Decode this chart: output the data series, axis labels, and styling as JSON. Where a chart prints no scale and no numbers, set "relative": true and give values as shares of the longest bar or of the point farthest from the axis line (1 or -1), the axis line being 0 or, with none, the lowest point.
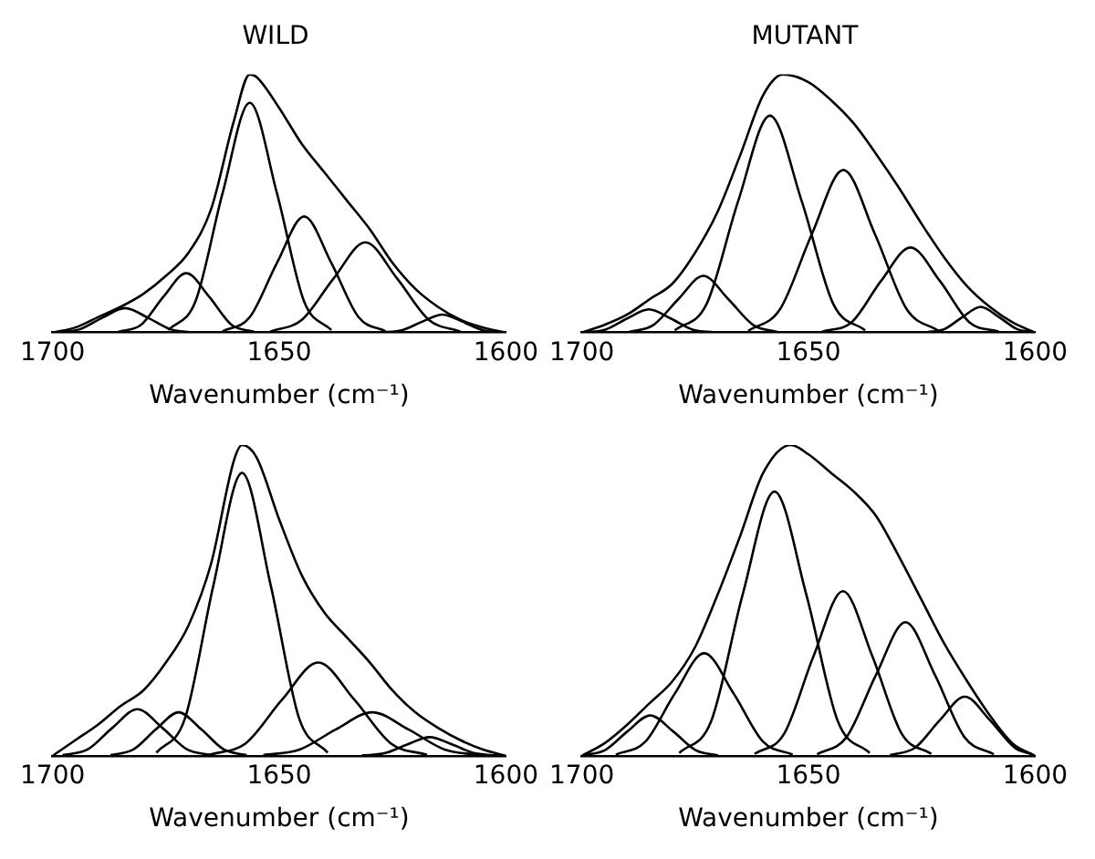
{
  "chart_data": [
    {
      "type": "line",
      "title": "WILD",
      "xlabel": "Wavenumber (cm⁻¹)",
      "relative": true,
      "xlim": [
        1700,
        1600
      ],
      "xticks": [
        1700,
        1650,
        1600
      ],
      "marker": "none",
      "line_style": "solid",
      "legend": false,
      "series": [
        {
          "color": "#000000",
          "x": [
            1700,
            1695,
            1690,
            1685,
            1680,
            1675,
            1670,
            1665,
            1660,
            1656.5,
            1655,
            1650,
            1645,
            1640,
            1635,
            1630,
            1625,
            1620,
            1615,
            1610,
            1605,
            1600
          ],
          "values": [
            0,
            0.02,
            0.06,
            0.1,
            0.15,
            0.22,
            0.31,
            0.48,
            0.82,
            1,
            0.99,
            0.87,
            0.73,
            0.62,
            0.51,
            0.4,
            0.27,
            0.17,
            0.1,
            0.05,
            0.02,
            0
          ]
        },
        {
          "color": "#000000",
          "x": [
            1674.5,
            1668.5,
            1662.5,
            1656.5,
            1650.5,
            1644.5,
            1638.5
          ],
          "values": [
            0.01,
            0.12,
            0.54,
            0.89,
            0.54,
            0.12,
            0.01
          ]
        },
        {
          "color": "#000000",
          "x": [
            1662.5,
            1656.5,
            1650.5,
            1644.5,
            1638.5,
            1632.5,
            1626.5
          ],
          "values": [
            0.005,
            0.06,
            0.27,
            0.45,
            0.27,
            0.06,
            0.005
          ]
        },
        {
          "color": "#000000",
          "x": [
            1652,
            1645,
            1638,
            1631,
            1624,
            1617,
            1610
          ],
          "values": [
            0.004,
            0.05,
            0.21,
            0.35,
            0.21,
            0.05,
            0.004
          ]
        },
        {
          "color": "#000000",
          "x": [
            1685.5,
            1680.5,
            1675.5,
            1670.5,
            1665.5,
            1660.5,
            1655.5
          ],
          "values": [
            0.003,
            0.03,
            0.14,
            0.23,
            0.14,
            0.03,
            0.003
          ]
        },
        {
          "color": "#000000",
          "x": [
            1699,
            1694,
            1689,
            1684,
            1679,
            1674,
            1669
          ],
          "values": [
            0.001,
            0.013,
            0.058,
            0.095,
            0.058,
            0.013,
            0.001
          ]
        },
        {
          "color": "#000000",
          "x": [
            1627.5,
            1623,
            1618.5,
            1614,
            1609.5,
            1605,
            1601
          ],
          "values": [
            0.001,
            0.009,
            0.042,
            0.07,
            0.042,
            0.009,
            0.001
          ]
        }
      ]
    },
    {
      "type": "line",
      "title": "MUTANT",
      "xlabel": "Wavenumber (cm⁻¹)",
      "relative": true,
      "xlim": [
        1700,
        1600
      ],
      "xticks": [
        1700,
        1650,
        1600
      ],
      "marker": "none",
      "line_style": "solid",
      "legend": false,
      "series": [
        {
          "color": "#000000",
          "x": [
            1700,
            1695,
            1690,
            1685,
            1680,
            1675,
            1670,
            1665,
            1660,
            1655.6,
            1650,
            1645,
            1640,
            1635,
            1630,
            1625,
            1620,
            1615,
            1610,
            1605,
            1600
          ],
          "values": [
            0,
            0.03,
            0.07,
            0.13,
            0.19,
            0.31,
            0.47,
            0.69,
            0.92,
            1,
            0.97,
            0.9,
            0.81,
            0.69,
            0.56,
            0.42,
            0.29,
            0.18,
            0.1,
            0.04,
            0
          ]
        },
        {
          "color": "#000000",
          "x": [
            1679.5,
            1672.5,
            1665.5,
            1658.5,
            1651.5,
            1644.5,
            1637.5
          ],
          "values": [
            0.009,
            0.11,
            0.51,
            0.84,
            0.51,
            0.11,
            0.009
          ]
        },
        {
          "color": "#000000",
          "x": [
            1663.3,
            1656.3,
            1649.3,
            1642.3,
            1635.3,
            1628.3,
            1621.3
          ],
          "values": [
            0.007,
            0.09,
            0.38,
            0.63,
            0.38,
            0.09,
            0.007
          ]
        },
        {
          "color": "#000000",
          "x": [
            1647,
            1640.5,
            1634,
            1627.5,
            1621,
            1614.5,
            1608
          ],
          "values": [
            0.004,
            0.04,
            0.2,
            0.33,
            0.2,
            0.04,
            0.004
          ]
        },
        {
          "color": "#000000",
          "x": [
            1689.7,
            1684.2,
            1678.7,
            1673.2,
            1667.7,
            1662.2,
            1656.7
          ],
          "values": [
            0.002,
            0.03,
            0.13,
            0.22,
            0.13,
            0.03,
            0.002
          ]
        },
        {
          "color": "#000000",
          "x": [
            1699.6,
            1694.8,
            1690,
            1685.2,
            1680.4,
            1675.6,
            1670.8
          ],
          "values": [
            0.001,
            0.012,
            0.055,
            0.09,
            0.055,
            0.012,
            0.001
          ]
        },
        {
          "color": "#000000",
          "x": [
            1624,
            1620,
            1616,
            1612,
            1608,
            1604,
            1600.5
          ],
          "values": [
            0.001,
            0.014,
            0.061,
            0.1,
            0.061,
            0.014,
            0.002
          ]
        }
      ]
    },
    {
      "type": "line",
      "xlabel": "Wavenumber (cm⁻¹)",
      "relative": true,
      "xlim": [
        1700,
        1600
      ],
      "xticks": [
        1700,
        1650,
        1600
      ],
      "marker": "none",
      "line_style": "solid",
      "legend": false,
      "series": [
        {
          "color": "#000000",
          "x": [
            1700,
            1695,
            1690,
            1685,
            1680,
            1675,
            1670,
            1665,
            1660,
            1658.2,
            1655,
            1650,
            1645,
            1640,
            1635,
            1630,
            1625,
            1620,
            1615,
            1610,
            1605,
            1600
          ],
          "values": [
            0,
            0.05,
            0.1,
            0.16,
            0.21,
            0.3,
            0.42,
            0.62,
            0.95,
            1,
            0.96,
            0.76,
            0.58,
            0.46,
            0.38,
            0.3,
            0.21,
            0.14,
            0.09,
            0.05,
            0.02,
            0
          ]
        },
        {
          "color": "#000000",
          "x": [
            1677.1,
            1670.8,
            1664.5,
            1658.2,
            1651.9,
            1645.6,
            1639.3
          ],
          "values": [
            0.01,
            0.12,
            0.55,
            0.91,
            0.55,
            0.12,
            0.01
          ]
        },
        {
          "color": "#000000",
          "x": [
            1665.4,
            1657.4,
            1649.4,
            1641.4,
            1633.4,
            1625.4,
            1617.4
          ],
          "values": [
            0.003,
            0.04,
            0.18,
            0.3,
            0.18,
            0.04,
            0.003
          ]
        },
        {
          "color": "#000000",
          "x": [
            1653.5,
            1645.5,
            1637.5,
            1629.5,
            1621.5,
            1613.5,
            1605.5
          ],
          "values": [
            0.002,
            0.02,
            0.085,
            0.14,
            0.085,
            0.02,
            0.002
          ]
        },
        {
          "color": "#000000",
          "x": [
            1697.8,
            1692.3,
            1686.8,
            1681.3,
            1675.8,
            1670.3,
            1664.8
          ],
          "values": [
            0.002,
            0.02,
            0.09,
            0.15,
            0.09,
            0.02,
            0.002
          ]
        },
        {
          "color": "#000000",
          "x": [
            1687.2,
            1682.2,
            1677.2,
            1672.2,
            1667.2,
            1662.2,
            1657.2
          ],
          "values": [
            0.002,
            0.02,
            0.085,
            0.14,
            0.085,
            0.02,
            0.002
          ]
        },
        {
          "color": "#000000",
          "x": [
            1631.8,
            1626.8,
            1621.8,
            1616.8,
            1611.8,
            1606.8,
            1601.8
          ],
          "values": [
            0.001,
            0.008,
            0.036,
            0.06,
            0.036,
            0.008,
            0.001
          ]
        }
      ]
    },
    {
      "type": "line",
      "xlabel": "Wavenumber (cm⁻¹)",
      "relative": true,
      "xlim": [
        1700,
        1600
      ],
      "xticks": [
        1700,
        1650,
        1600
      ],
      "marker": "none",
      "line_style": "solid",
      "legend": false,
      "series": [
        {
          "color": "#000000",
          "x": [
            1700,
            1695,
            1690,
            1685,
            1680,
            1675,
            1670,
            1665,
            1660,
            1653.9,
            1650,
            1645,
            1640,
            1635,
            1630,
            1625,
            1620,
            1615,
            1610,
            1605,
            1600
          ],
          "values": [
            0,
            0.04,
            0.1,
            0.17,
            0.24,
            0.35,
            0.52,
            0.71,
            0.91,
            1,
            0.97,
            0.91,
            0.85,
            0.77,
            0.64,
            0.5,
            0.36,
            0.24,
            0.13,
            0.04,
            0
          ]
        },
        {
          "color": "#000000",
          "x": [
            1678.5,
            1671.5,
            1664.5,
            1657.5,
            1650.5,
            1643.5,
            1636.5
          ],
          "values": [
            0.009,
            0.11,
            0.52,
            0.85,
            0.52,
            0.11,
            0.009
          ]
        },
        {
          "color": "#000000",
          "x": [
            1661.9,
            1655.4,
            1648.9,
            1642.4,
            1635.9,
            1629.4,
            1622.9
          ],
          "values": [
            0.006,
            0.07,
            0.32,
            0.53,
            0.32,
            0.07,
            0.006
          ]
        },
        {
          "color": "#000000",
          "x": [
            1648.1,
            1641.6,
            1635.1,
            1628.6,
            1622.1,
            1615.6,
            1609.1
          ],
          "values": [
            0.005,
            0.06,
            0.26,
            0.43,
            0.26,
            0.06,
            0.005
          ]
        },
        {
          "color": "#000000",
          "x": [
            1692.5,
            1686,
            1679.5,
            1673,
            1666.5,
            1660,
            1653.5
          ],
          "values": [
            0.004,
            0.045,
            0.2,
            0.33,
            0.2,
            0.045,
            0.004
          ]
        },
        {
          "color": "#000000",
          "x": [
            1699.9,
            1694.9,
            1689.9,
            1684.9,
            1679.9,
            1674.9,
            1669.9
          ],
          "values": [
            0.001,
            0.018,
            0.079,
            0.13,
            0.079,
            0.018,
            0.001
          ]
        },
        {
          "color": "#000000",
          "x": [
            1632,
            1626.5,
            1621,
            1615.5,
            1610,
            1604.5,
            1600.5
          ],
          "values": [
            0.002,
            0.026,
            0.115,
            0.19,
            0.115,
            0.026,
            0.004
          ]
        }
      ]
    }
  ]
}
